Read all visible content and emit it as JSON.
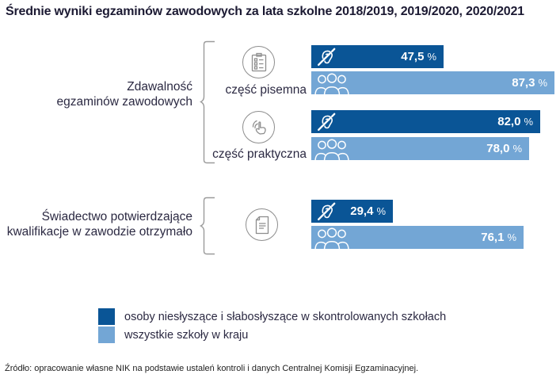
{
  "title": "Średnie wyniki egzaminów zawodowych za lata szkolne 2018/2019, 2019/2020, 2020/2021",
  "colors": {
    "dark_blue": "#0a5596",
    "light_blue": "#73a6d5",
    "text_dark": "#2b2942",
    "icon_gray": "#8d8d8d"
  },
  "groups": [
    {
      "label_lines": [
        "Zdawalność",
        "egzaminów zawodowych"
      ]
    },
    {
      "label_lines": [
        "Świadectwo potwierdzające",
        "kwalifikacje w zawodzie otrzymało"
      ]
    }
  ],
  "chart_data": {
    "type": "bar",
    "orientation": "horizontal",
    "title": "Średnie wyniki egzaminów zawodowych za lata szkolne 2018/2019, 2019/2020, 2020/2021",
    "categories": [
      "część pisemna",
      "część praktyczna",
      "świadectwo potwierdzające kwalifikacje w zawodzie otrzymało"
    ],
    "series": [
      {
        "name": "osoby niesłyszące i słabosłyszące w skontrolowanych szkołach",
        "color": "#0a5596",
        "values": [
          47.5,
          82.0,
          29.4
        ],
        "value_labels": [
          "47,5",
          "82,0",
          "29,4"
        ]
      },
      {
        "name": "wszystkie szkoły w kraju",
        "color": "#73a6d5",
        "values": [
          87.3,
          78.0,
          76.1
        ],
        "value_labels": [
          "87,3",
          "78,0",
          "76,1"
        ]
      }
    ],
    "unit": "%",
    "xlim": [
      0,
      100
    ],
    "grid": false,
    "legend_position": "bottom"
  },
  "legend": {
    "items": [
      {
        "label": "osoby niesłyszące i słabosłyszące w skontrolowanych szkołach",
        "color": "#0a5596"
      },
      {
        "label": "wszystkie szkoły w kraju",
        "color": "#73a6d5"
      }
    ]
  },
  "source": "Źródło: opracowanie własne NIK na podstawie ustaleń kontroli i danych Centralnej Komisji Egzaminacyjnej."
}
